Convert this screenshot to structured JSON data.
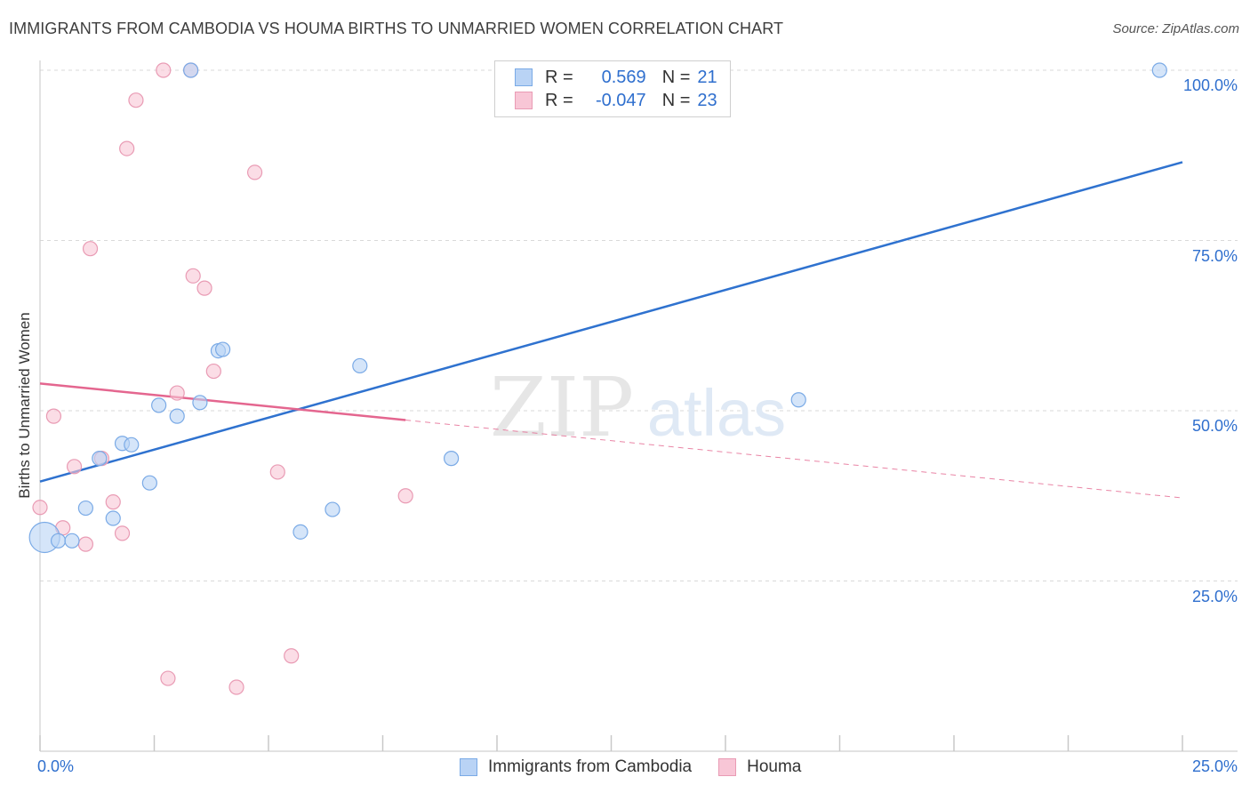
{
  "header": {
    "title": "IMMIGRANTS FROM CAMBODIA VS HOUMA BIRTHS TO UNMARRIED WOMEN CORRELATION CHART",
    "source": "Source: ZipAtlas.com"
  },
  "watermark": {
    "zip": "ZIP",
    "atlas": "atlas"
  },
  "legend": {
    "rows": [
      {
        "r_label": "R =",
        "r_value": "0.569",
        "n_label": "N =",
        "n_value": "21"
      },
      {
        "r_label": "R =",
        "r_value": "-0.047",
        "n_label": "N =",
        "n_value": "23"
      }
    ]
  },
  "colors": {
    "blue_fill": "#b9d3f5",
    "blue_stroke": "#7aaae6",
    "blue_line": "#2f72cf",
    "pink_fill": "#f8c6d6",
    "pink_stroke": "#e99bb4",
    "pink_line": "#e4668f",
    "grid": "#d9d9d9",
    "tick_text": "#2f6fce"
  },
  "chart_data": {
    "type": "scatter",
    "title": "IMMIGRANTS FROM CAMBODIA VS HOUMA BIRTHS TO UNMARRIED WOMEN CORRELATION CHART",
    "xlabel": "",
    "ylabel": "Births to Unmarried Women",
    "xlim": [
      0,
      25
    ],
    "ylim": [
      0,
      100
    ],
    "x_tick_labels": {
      "left": "0.0%",
      "right": "25.0%"
    },
    "y_ticks": [
      {
        "value": 25,
        "label": "25.0%"
      },
      {
        "value": 50,
        "label": "50.0%"
      },
      {
        "value": 75,
        "label": "75.0%"
      },
      {
        "value": 100,
        "label": "100.0%"
      }
    ],
    "grid": true,
    "legend_position": "top-center",
    "series": [
      {
        "name": "Immigrants from Cambodia",
        "color": "blue",
        "r": 0.569,
        "n": 21,
        "trend": {
          "x0": 0,
          "y0": 39.6,
          "x1": 25,
          "y1": 86.5,
          "dashed_from": null
        },
        "points": [
          {
            "x": 0.1,
            "y": 31.4,
            "size": "large"
          },
          {
            "x": 0.4,
            "y": 30.9
          },
          {
            "x": 0.7,
            "y": 30.9
          },
          {
            "x": 1.0,
            "y": 35.7
          },
          {
            "x": 1.3,
            "y": 43.0
          },
          {
            "x": 1.6,
            "y": 34.2
          },
          {
            "x": 1.8,
            "y": 45.2
          },
          {
            "x": 2.0,
            "y": 45.0
          },
          {
            "x": 2.4,
            "y": 39.4
          },
          {
            "x": 2.6,
            "y": 50.8
          },
          {
            "x": 3.0,
            "y": 49.2
          },
          {
            "x": 3.3,
            "y": 100.0
          },
          {
            "x": 3.5,
            "y": 51.2
          },
          {
            "x": 3.9,
            "y": 58.8
          },
          {
            "x": 4.0,
            "y": 59.0
          },
          {
            "x": 5.7,
            "y": 32.2
          },
          {
            "x": 6.4,
            "y": 35.5
          },
          {
            "x": 7.0,
            "y": 56.6
          },
          {
            "x": 9.0,
            "y": 43.0
          },
          {
            "x": 16.6,
            "y": 51.6
          },
          {
            "x": 24.5,
            "y": 100.0
          }
        ]
      },
      {
        "name": "Houma",
        "color": "pink",
        "r": -0.047,
        "n": 23,
        "trend": {
          "x0": 0,
          "y0": 54.0,
          "x1": 25,
          "y1": 37.2,
          "dashed_from": 8.0
        },
        "points": [
          {
            "x": 0.0,
            "y": 35.8
          },
          {
            "x": 0.3,
            "y": 49.2
          },
          {
            "x": 0.5,
            "y": 32.8
          },
          {
            "x": 0.75,
            "y": 41.8
          },
          {
            "x": 1.0,
            "y": 30.4
          },
          {
            "x": 1.1,
            "y": 73.8
          },
          {
            "x": 1.35,
            "y": 43.0
          },
          {
            "x": 1.6,
            "y": 36.6
          },
          {
            "x": 1.8,
            "y": 32.0
          },
          {
            "x": 1.9,
            "y": 88.5
          },
          {
            "x": 2.1,
            "y": 95.6
          },
          {
            "x": 2.7,
            "y": 100.0
          },
          {
            "x": 2.8,
            "y": 10.7
          },
          {
            "x": 3.0,
            "y": 52.6
          },
          {
            "x": 3.3,
            "y": 100.0
          },
          {
            "x": 3.35,
            "y": 69.8
          },
          {
            "x": 3.6,
            "y": 68.0
          },
          {
            "x": 3.8,
            "y": 55.8
          },
          {
            "x": 4.3,
            "y": 9.4
          },
          {
            "x": 4.7,
            "y": 85.0
          },
          {
            "x": 5.2,
            "y": 41.0
          },
          {
            "x": 5.5,
            "y": 14.0
          },
          {
            "x": 8.0,
            "y": 37.5
          }
        ]
      }
    ]
  }
}
